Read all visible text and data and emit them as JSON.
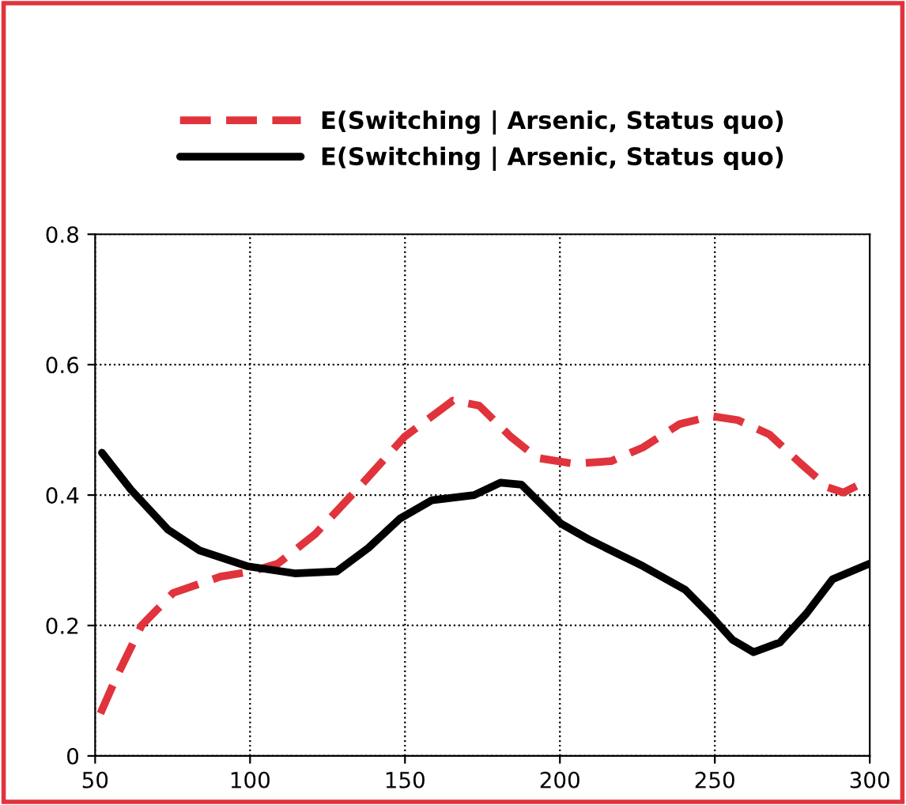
{
  "chart_data": {
    "type": "line",
    "series": [
      {
        "name": "E(Switching | Arsenic, Status quo)",
        "color": "#e0333c",
        "line_style": "dashed",
        "x": [
          51.7,
          56.5,
          65,
          75.2,
          90.5,
          100.7,
          109,
          121,
          134.8,
          150,
          165.5,
          174,
          184,
          192.7,
          204.6,
          216.5,
          226.8,
          238.7,
          248.9,
          257.4,
          267.6,
          277.8,
          286.4,
          291.5,
          298.3
        ],
        "values": [
          0.065,
          0.117,
          0.2,
          0.25,
          0.275,
          0.283,
          0.295,
          0.34,
          0.41,
          0.49,
          0.545,
          0.537,
          0.49,
          0.457,
          0.448,
          0.452,
          0.473,
          0.509,
          0.521,
          0.515,
          0.493,
          0.448,
          0.412,
          0.404,
          0.42
        ]
      },
      {
        "name": "E(Switching | Arsenic, Status quo)",
        "color": "#000000",
        "line_style": "solid",
        "x": [
          52.2,
          61.6,
          73.5,
          83.7,
          99,
          114.4,
          128,
          138.2,
          148.4,
          158.6,
          172.3,
          180.8,
          187.6,
          194.4,
          200.4,
          209.7,
          226.8,
          240.4,
          248.9,
          255.7,
          262.5,
          271,
          279.5,
          288,
          300
        ],
        "values": [
          0.465,
          0.408,
          0.347,
          0.315,
          0.291,
          0.28,
          0.283,
          0.319,
          0.364,
          0.392,
          0.4,
          0.419,
          0.416,
          0.384,
          0.356,
          0.331,
          0.291,
          0.255,
          0.214,
          0.178,
          0.159,
          0.174,
          0.218,
          0.271,
          0.295
        ]
      }
    ],
    "xlim": [
      50,
      300
    ],
    "xticks": [
      50,
      100,
      150,
      200,
      250,
      300
    ],
    "ylim": [
      0,
      0.8
    ],
    "yticks": [
      {
        "value": 0,
        "label": "0"
      },
      0.2,
      0.4,
      0.6,
      0.8
    ],
    "grid": true,
    "legend": "top",
    "marker": "none"
  }
}
